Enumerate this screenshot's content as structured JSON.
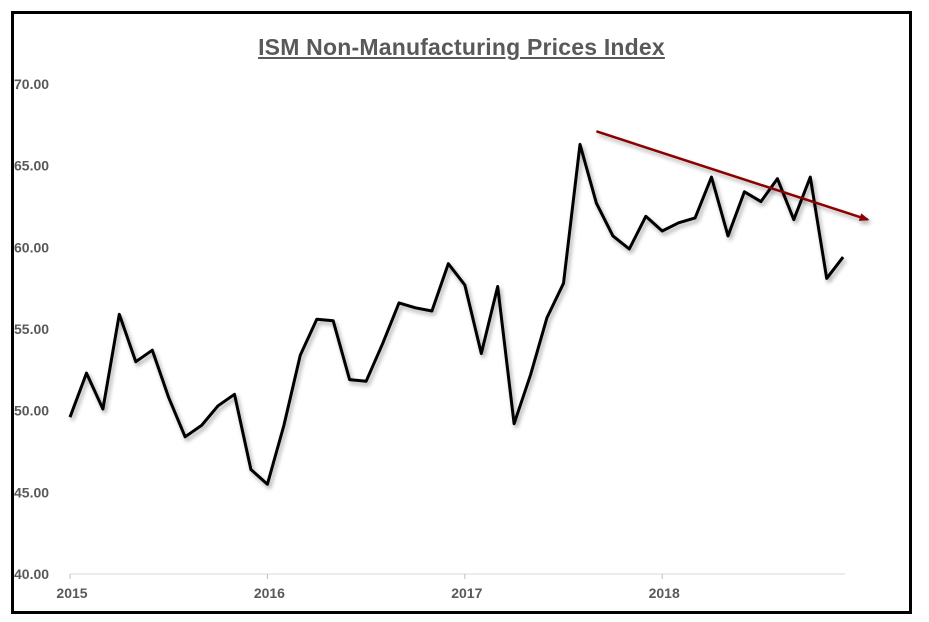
{
  "chart_data": {
    "type": "line",
    "title": "ISM Non-Manufacturing Prices Index",
    "xlabel": "",
    "ylabel": "",
    "ylim": [
      40,
      70
    ],
    "yticks": [
      "40.00",
      "45.00",
      "50.00",
      "55.00",
      "60.00",
      "65.00",
      "70.00"
    ],
    "xticks": [
      {
        "label": "2015",
        "index": 0
      },
      {
        "label": "2016",
        "index": 12
      },
      {
        "label": "2017",
        "index": 24
      },
      {
        "label": "2018",
        "index": 36
      }
    ],
    "grid": false,
    "series": [
      {
        "name": "ISM Non-Manufacturing Prices Index",
        "color": "#000000",
        "values": [
          49.6,
          52.3,
          50.1,
          55.9,
          53.0,
          53.7,
          50.8,
          48.4,
          49.1,
          50.3,
          51.0,
          46.4,
          45.5,
          49.1,
          53.4,
          55.6,
          55.5,
          51.9,
          51.8,
          54.1,
          56.6,
          56.3,
          56.1,
          59.0,
          57.7,
          53.5,
          57.6,
          49.2,
          52.2,
          55.7,
          57.8,
          66.3,
          62.7,
          60.7,
          59.9,
          61.9,
          61.0,
          61.5,
          61.8,
          64.3,
          60.7,
          63.4,
          62.8,
          64.2,
          61.7,
          64.3,
          58.1,
          59.4
        ]
      }
    ],
    "annotations": [
      {
        "type": "trend-arrow",
        "color": "#8B0000",
        "from": {
          "index": 32,
          "value": 67.1
        },
        "to": {
          "index": 48,
          "value": 61.7
        }
      }
    ]
  }
}
